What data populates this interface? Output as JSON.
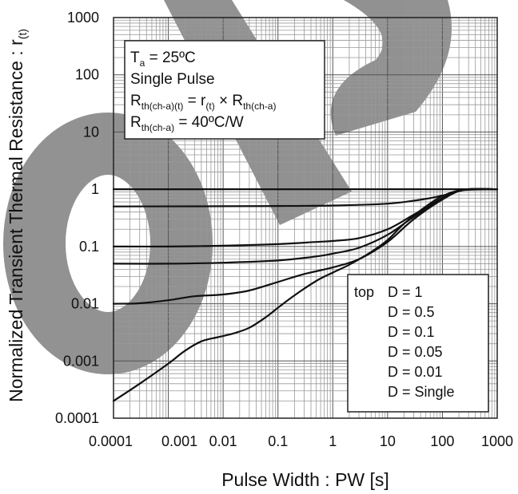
{
  "chart_data": {
    "type": "line",
    "x_scale": "log",
    "y_scale": "log",
    "xlim": [
      0.0001,
      1000
    ],
    "ylim": [
      0.0001,
      1000
    ],
    "grid": true,
    "xlabel": "Pulse Width : PW [s]",
    "ylabel": "Normalized Transient Thermal Resistance : r(t)",
    "ylabel_main": "Normalized Transient Thermal Resistance : r",
    "ylabel_sub": "(t)",
    "x_ticks": [
      "0.0001",
      "0.001",
      "0.01",
      "0.1",
      "1",
      "10",
      "100",
      "1000"
    ],
    "y_ticks": [
      "0.0001",
      "0.001",
      "0.01",
      "0.1",
      "1",
      "10",
      "100",
      "1000"
    ],
    "annotation": {
      "line1_main": "T",
      "line1_sub": "a",
      "line1_rest": " = 25ºC",
      "line2": "Single Pulse",
      "line3_a": "R",
      "line3_a_sub": "th(ch-a)(t)",
      "line3_b": " = r",
      "line3_b_sub": "(t)",
      "line3_c": " × R",
      "line3_c_sub": "th(ch-a)",
      "line4_a": "R",
      "line4_a_sub": "th(ch-a)",
      "line4_b": " = 40ºC/W"
    },
    "legend": {
      "position": "bottom-right",
      "prefix": "top",
      "entries": [
        "D = 1",
        "D = 0.5",
        "D = 0.1",
        "D = 0.05",
        "D = 0.01",
        "D = Single"
      ]
    },
    "series": [
      {
        "name": "D = 1",
        "x": [
          0.0001,
          1000
        ],
        "y": [
          1,
          1
        ]
      },
      {
        "name": "D = 0.5",
        "x": [
          0.0001,
          0.01,
          0.1,
          1,
          10,
          50,
          150,
          250,
          1000
        ],
        "y": [
          0.5,
          0.505,
          0.51,
          0.52,
          0.56,
          0.68,
          0.85,
          0.97,
          1
        ]
      },
      {
        "name": "D = 0.1",
        "x": [
          0.0001,
          0.001,
          0.01,
          0.1,
          0.5,
          1,
          3,
          10,
          30,
          100,
          250,
          1000
        ],
        "y": [
          0.1,
          0.1,
          0.103,
          0.11,
          0.12,
          0.125,
          0.14,
          0.2,
          0.36,
          0.7,
          0.98,
          1
        ]
      },
      {
        "name": "D = 0.05",
        "x": [
          0.0001,
          0.001,
          0.01,
          0.1,
          0.5,
          1,
          3,
          10,
          30,
          100,
          250,
          1000
        ],
        "y": [
          0.05,
          0.05,
          0.052,
          0.057,
          0.067,
          0.075,
          0.095,
          0.16,
          0.33,
          0.68,
          0.98,
          1
        ]
      },
      {
        "name": "D = 0.01",
        "x": [
          0.0001,
          0.0003,
          0.001,
          0.003,
          0.01,
          0.03,
          0.1,
          0.3,
          1,
          3,
          10,
          30,
          100,
          250,
          1000
        ],
        "y": [
          0.01,
          0.0102,
          0.0115,
          0.0135,
          0.0145,
          0.017,
          0.024,
          0.033,
          0.043,
          0.06,
          0.12,
          0.3,
          0.66,
          0.98,
          1
        ]
      },
      {
        "name": "D = Single",
        "x": [
          0.0001,
          0.0003,
          0.001,
          0.002,
          0.004,
          0.008,
          0.015,
          0.03,
          0.06,
          0.1,
          0.2,
          0.5,
          1,
          2,
          5,
          10,
          20,
          50,
          100,
          250,
          1000
        ],
        "y": [
          0.0002,
          0.0004,
          0.0009,
          0.0015,
          0.0022,
          0.0026,
          0.003,
          0.0038,
          0.0058,
          0.0085,
          0.014,
          0.025,
          0.035,
          0.048,
          0.08,
          0.13,
          0.25,
          0.5,
          0.76,
          0.99,
          1
        ]
      }
    ]
  }
}
